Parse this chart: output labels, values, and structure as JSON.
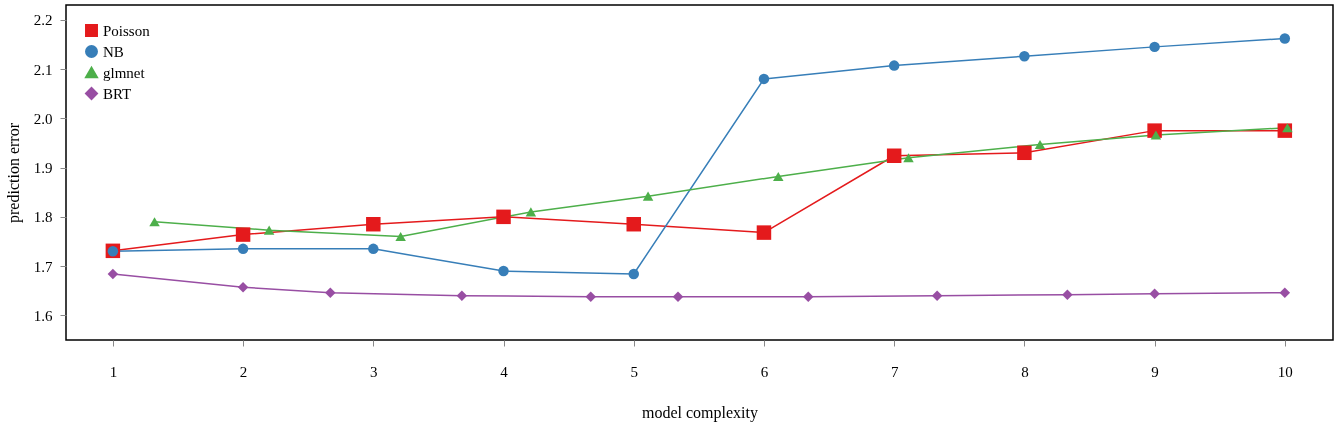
{
  "chart_data": {
    "type": "line",
    "xlabel": "model complexity",
    "ylabel": "prediction error",
    "xlim": [
      0.64,
      10.37
    ],
    "ylim": [
      1.55,
      2.23
    ],
    "xticks": [
      1,
      2,
      3,
      4,
      5,
      6,
      7,
      8,
      9,
      10
    ],
    "yticks": [
      1.6,
      1.7,
      1.8,
      1.9,
      {
        "value": 2.0,
        "label": "2.0"
      },
      2.1,
      2.2
    ],
    "grid": false,
    "legend": "top left",
    "series": [
      {
        "name": "Poisson",
        "color": "#e41a1c",
        "marker": "square",
        "x": [
          1,
          2,
          3,
          4,
          5,
          6,
          7,
          8,
          9,
          10
        ],
        "values": [
          1.731,
          1.764,
          1.785,
          1.8,
          1.785,
          1.768,
          1.924,
          1.93,
          1.975,
          1.975
        ]
      },
      {
        "name": "NB",
        "color": "#377eb8",
        "marker": "circle",
        "x": [
          1,
          2,
          3,
          4,
          5,
          6,
          7,
          8,
          9,
          10
        ],
        "values": [
          1.73,
          1.735,
          1.735,
          1.69,
          1.684,
          2.08,
          2.107,
          2.126,
          2.145,
          2.162
        ]
      },
      {
        "name": "glmnet",
        "color": "#4daf4a",
        "marker": "triangle",
        "x": [
          1.32,
          2.2,
          3.21,
          4.21,
          5.11,
          6.11,
          7.11,
          8.12,
          9.01,
          10.02
        ],
        "values": [
          1.79,
          1.773,
          1.76,
          1.81,
          1.842,
          1.882,
          1.92,
          1.947,
          1.966,
          1.981
        ]
      },
      {
        "name": "BRT",
        "color": "#984ea3",
        "marker": "diamond",
        "x": [
          1,
          2,
          2.67,
          3.68,
          4.67,
          5.34,
          6.34,
          7.33,
          8.33,
          9.0,
          10
        ],
        "values": [
          1.684,
          1.657,
          1.646,
          1.64,
          1.638,
          1.638,
          1.638,
          1.64,
          1.642,
          1.644,
          1.646
        ]
      }
    ]
  }
}
